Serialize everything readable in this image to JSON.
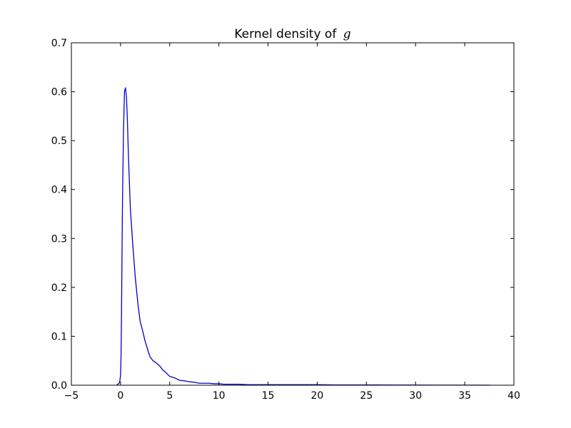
{
  "chart_data": {
    "type": "line",
    "title": "Kernel density of",
    "title_variable": "g",
    "xlabel": "",
    "ylabel": "",
    "xlim": [
      -5,
      40
    ],
    "ylim": [
      0,
      0.7
    ],
    "x_ticks": [
      -5,
      0,
      5,
      10,
      15,
      20,
      25,
      30,
      35,
      40
    ],
    "x_tick_labels": [
      "−5",
      "0",
      "5",
      "10",
      "15",
      "20",
      "25",
      "30",
      "35",
      "40"
    ],
    "y_ticks": [
      0.0,
      0.1,
      0.2,
      0.3,
      0.4,
      0.5,
      0.6,
      0.7
    ],
    "y_tick_labels": [
      "0.0",
      "0.1",
      "0.2",
      "0.3",
      "0.4",
      "0.5",
      "0.6",
      "0.7"
    ],
    "grid": false,
    "legend": false,
    "series": [
      {
        "color": "#0000cc",
        "x": [
          -0.4,
          -0.1,
          0.0,
          0.05,
          0.1,
          0.15,
          0.2,
          0.3,
          0.4,
          0.5,
          0.6,
          0.7,
          0.8,
          1.0,
          1.2,
          1.5,
          1.8,
          2.0,
          2.2,
          2.5,
          2.8,
          3.0,
          3.3,
          3.6,
          4.0,
          4.3,
          4.6,
          5.0,
          5.5,
          6.0,
          6.5,
          7.0,
          7.5,
          8.0,
          8.5,
          9.0,
          9.5,
          10.0,
          10.5,
          11.0,
          11.5,
          12.0,
          13.0,
          14.0,
          15.0,
          16.0,
          17.0,
          18.0,
          20.0,
          22.0,
          24.0,
          26.0,
          28.0,
          30.0,
          32.0,
          34.0,
          36.0,
          37.6
        ],
        "y": [
          0.0,
          0.005,
          0.02,
          0.06,
          0.15,
          0.27,
          0.38,
          0.52,
          0.6,
          0.608,
          0.59,
          0.54,
          0.47,
          0.36,
          0.3,
          0.22,
          0.16,
          0.13,
          0.115,
          0.09,
          0.07,
          0.058,
          0.05,
          0.046,
          0.039,
          0.031,
          0.026,
          0.018,
          0.015,
          0.01,
          0.009,
          0.007,
          0.006,
          0.004,
          0.004,
          0.004,
          0.003,
          0.003,
          0.002,
          0.002,
          0.002,
          0.002,
          0.001,
          0.001,
          0.001,
          0.001,
          0.001,
          0.001,
          0.001,
          0.0005,
          0.0005,
          0.0005,
          0.0003,
          0.0003,
          0.0002,
          0.0002,
          0.0002,
          0.0
        ]
      }
    ]
  }
}
